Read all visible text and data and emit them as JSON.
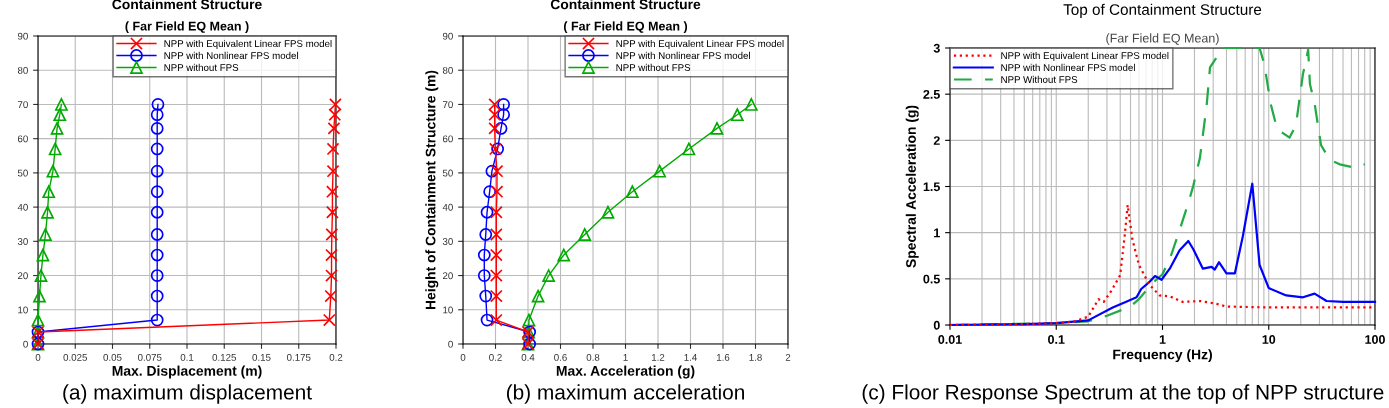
{
  "chart_data": [
    {
      "type": "line",
      "title": "Containment Structure",
      "subtitle": "( Far Field EQ Mean )",
      "xlabel": "Max. Displacement (m)",
      "xlim": [
        0,
        0.2
      ],
      "xticks": [
        0,
        0.025,
        0.05,
        0.075,
        0.1,
        0.125,
        0.15,
        0.175,
        0.2
      ],
      "ylim": [
        0,
        90
      ],
      "yticks": [
        0,
        10,
        20,
        30,
        40,
        50,
        60,
        70,
        80,
        90
      ],
      "grid": true,
      "legend": "top right",
      "series": [
        {
          "name": "NPP with Equivalent Linear FPS model",
          "color": "#ff0000",
          "marker": "cross",
          "line_style": "solid",
          "x": [
            0,
            0,
            0.1955,
            0.1965,
            0.197,
            0.197,
            0.1972,
            0.1976,
            0.1976,
            0.198,
            0.198,
            0.1986,
            0.1992,
            0.1996
          ],
          "values": [
            0,
            3.5,
            7,
            14,
            20,
            26,
            32,
            38.5,
            44.5,
            50.5,
            57,
            63,
            67,
            70
          ]
        },
        {
          "name": "NPP with Nonlinear FPS model",
          "color": "#0000ff",
          "marker": "circle",
          "line_style": "solid",
          "x": [
            0,
            0,
            0.08,
            0.08,
            0.08,
            0.08,
            0.08,
            0.08,
            0.08,
            0.08,
            0.08,
            0.08,
            0.08,
            0.0805
          ],
          "values": [
            0,
            3.5,
            7,
            14,
            20,
            26,
            32,
            38.5,
            44.5,
            50.5,
            57,
            63,
            67,
            70
          ]
        },
        {
          "name": "NPP without FPS",
          "color": "#00aa00",
          "marker": "triangle",
          "line_style": "solid",
          "x": [
            0,
            0,
            0,
            0.001,
            0.002,
            0.0033,
            0.005,
            0.0064,
            0.0072,
            0.01,
            0.0115,
            0.0128,
            0.0146,
            0.0157
          ],
          "values": [
            0,
            3.5,
            7,
            14,
            20,
            26,
            32,
            38.5,
            44.5,
            50.5,
            57,
            63,
            67,
            70
          ]
        }
      ],
      "annotations": [
        "(a) maximum displacement"
      ]
    },
    {
      "type": "line",
      "title": "Containment Structure",
      "subtitle": "( Far Field EQ Mean )",
      "xlabel": "Max. Acceleration (g)",
      "ylabel": "Height of Containment Structure (m)",
      "xlim": [
        0,
        2
      ],
      "xticks": [
        0,
        0.2,
        0.4,
        0.6,
        0.8,
        1,
        1.2,
        1.4,
        1.6,
        1.8,
        2
      ],
      "ylim": [
        0,
        90
      ],
      "yticks": [
        0,
        10,
        20,
        30,
        40,
        50,
        60,
        70,
        80,
        90
      ],
      "grid": true,
      "legend": "top right",
      "series": [
        {
          "name": "NPP with Equivalent Linear FPS model",
          "color": "#ff0000",
          "marker": "cross",
          "line_style": "solid",
          "x": [
            0.4,
            0.4,
            0.205,
            0.205,
            0.205,
            0.205,
            0.205,
            0.205,
            0.209,
            0.209,
            0.199,
            0.195,
            0.195,
            0.195
          ],
          "values": [
            0,
            3.5,
            7,
            14,
            20,
            26,
            32,
            38.5,
            44.5,
            50.5,
            57,
            63,
            67,
            70
          ]
        },
        {
          "name": "NPP with Nonlinear FPS model",
          "color": "#0000ff",
          "marker": "circle",
          "line_style": "solid",
          "x": [
            0.41,
            0.41,
            0.148,
            0.14,
            0.131,
            0.131,
            0.14,
            0.148,
            0.164,
            0.178,
            0.213,
            0.234,
            0.25,
            0.25
          ],
          "values": [
            0,
            3.5,
            7,
            14,
            20,
            26,
            32,
            38.5,
            44.5,
            50.5,
            57,
            63,
            67,
            70
          ]
        },
        {
          "name": "NPP without FPS",
          "color": "#00aa00",
          "marker": "triangle",
          "line_style": "solid",
          "x": [
            0.4,
            0.404,
            0.406,
            0.462,
            0.527,
            0.62,
            0.749,
            0.892,
            1.042,
            1.21,
            1.39,
            1.563,
            1.688,
            1.774
          ],
          "values": [
            0,
            3.5,
            7,
            14,
            20,
            26,
            32,
            38.5,
            44.5,
            50.5,
            57,
            63,
            67,
            70
          ]
        }
      ],
      "annotations": [
        "(b) maximum acceleration"
      ]
    },
    {
      "type": "line",
      "title": "Top of Containment Structure",
      "subtitle": "(Far Field EQ Mean)",
      "xlabel": "Frequency (Hz)",
      "ylabel": "Spectral Acceleration (g)",
      "log": "x",
      "xlim": [
        0.01,
        100
      ],
      "xticks": [
        0.01,
        0.1,
        1,
        10,
        100
      ],
      "ylim": [
        0,
        3
      ],
      "yticks": [
        0,
        0.5,
        1,
        1.5,
        2,
        2.5,
        3
      ],
      "grid": true,
      "legend": "top left",
      "series": [
        {
          "name": "NPP with Equivalent Linear FPS model",
          "color": "#ff0000",
          "marker": "none",
          "line_style": "dotted",
          "x": [
            0.01,
            0.05,
            0.1,
            0.15,
            0.2,
            0.25,
            0.28,
            0.33,
            0.4,
            0.44,
            0.47,
            0.52,
            0.6,
            0.75,
            0.94,
            1.17,
            1.55,
            2.25,
            3.2,
            4,
            10,
            100
          ],
          "values": [
            0,
            0.01,
            0.02,
            0.04,
            0.09,
            0.28,
            0.25,
            0.37,
            0.54,
            0.96,
            1.3,
            0.93,
            0.65,
            0.44,
            0.32,
            0.31,
            0.25,
            0.26,
            0.23,
            0.2,
            0.19,
            0.19
          ]
        },
        {
          "name": "NPP with Nonlinear FPS model",
          "color": "#0000ff",
          "marker": "none",
          "line_style": "solid",
          "x": [
            0.01,
            0.05,
            0.1,
            0.2,
            0.34,
            0.45,
            0.57,
            0.63,
            0.76,
            0.85,
            0.98,
            1.17,
            1.45,
            1.75,
            1.95,
            2.4,
            2.9,
            3.1,
            3.4,
            4,
            4.8,
            5.7,
            7,
            8.2,
            10,
            14.6,
            21,
            27,
            35,
            50,
            100
          ],
          "values": [
            0,
            0.01,
            0.02,
            0.05,
            0.19,
            0.25,
            0.3,
            0.39,
            0.47,
            0.53,
            0.49,
            0.61,
            0.81,
            0.91,
            0.82,
            0.61,
            0.63,
            0.6,
            0.68,
            0.56,
            0.56,
            0.96,
            1.53,
            0.65,
            0.4,
            0.32,
            0.3,
            0.34,
            0.26,
            0.25,
            0.25
          ]
        },
        {
          "name": "NPP Without FPS",
          "color": "#22aa44",
          "marker": "none",
          "line_style": "dashed",
          "x": [
            0.01,
            0.1,
            0.2,
            0.3,
            0.5,
            0.6,
            0.8,
            1.0,
            1.2,
            1.45,
            1.75,
            1.95,
            2.25,
            2.6,
            2.8,
            3.7,
            5,
            8.2,
            9.1,
            10.4,
            12,
            15.7,
            18,
            21,
            23.5,
            24.4,
            27,
            31,
            37.5,
            46.6,
            67,
            80
          ],
          "values": [
            0,
            0.02,
            0.04,
            0.1,
            0.2,
            0.28,
            0.45,
            0.55,
            0.75,
            1.03,
            1.32,
            1.51,
            1.81,
            2.37,
            2.79,
            3.0,
            3.0,
            3.0,
            2.82,
            2.4,
            2.12,
            2.03,
            2.16,
            2.72,
            2.98,
            2.61,
            2.4,
            1.95,
            1.79,
            1.74,
            1.7,
            1.74
          ]
        }
      ],
      "annotations": [
        "(c) Floor Response Spectrum at the top of NPP structure"
      ]
    }
  ]
}
